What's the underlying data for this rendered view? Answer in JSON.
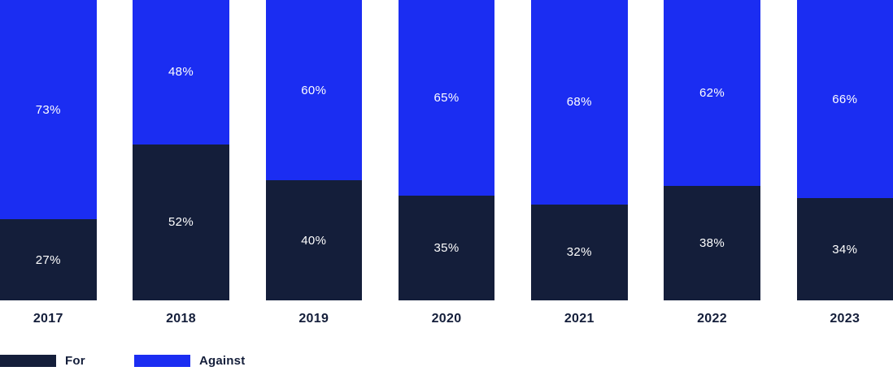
{
  "chart_data": {
    "type": "bar",
    "stacked": true,
    "title": "",
    "xlabel": "",
    "ylabel": "",
    "categories": [
      "2017",
      "2018",
      "2019",
      "2020",
      "2021",
      "2022",
      "2023"
    ],
    "series": [
      {
        "name": "For",
        "color": "#141e3a",
        "values": [
          27,
          52,
          40,
          35,
          32,
          38,
          34
        ]
      },
      {
        "name": "Against",
        "color": "#1b2df2",
        "values": [
          73,
          48,
          60,
          65,
          68,
          62,
          66
        ]
      }
    ],
    "value_suffix": "%",
    "ylim": [
      0,
      100
    ],
    "grid": false,
    "legend_position": "bottom-left",
    "bar_label_color": "#ffffff",
    "axis_label_color": "#141e3a",
    "background_color": "#ffffff"
  },
  "legend": {
    "items": [
      {
        "label": "For"
      },
      {
        "label": "Against"
      }
    ]
  }
}
